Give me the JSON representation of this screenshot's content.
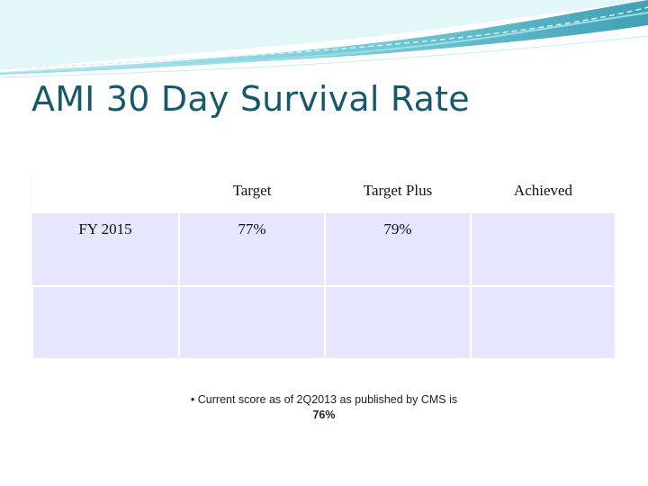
{
  "title": "AMI 30 Day Survival Rate",
  "table": {
    "headers": [
      "",
      "Target",
      "Target Plus",
      "Achieved"
    ],
    "rows": [
      {
        "label": "FY 2015",
        "target": "77%",
        "target_plus": "79%",
        "achieved": ""
      }
    ]
  },
  "note": {
    "bullet": "•",
    "text": "Current score as of 2Q2013 as published by CMS is ",
    "value": "76%"
  },
  "colors": {
    "title": "#17596b",
    "swoosh_dark": "#1f8fa6",
    "swoosh_light": "#8fd6e0",
    "cell_fill": "#e6e6ff"
  }
}
